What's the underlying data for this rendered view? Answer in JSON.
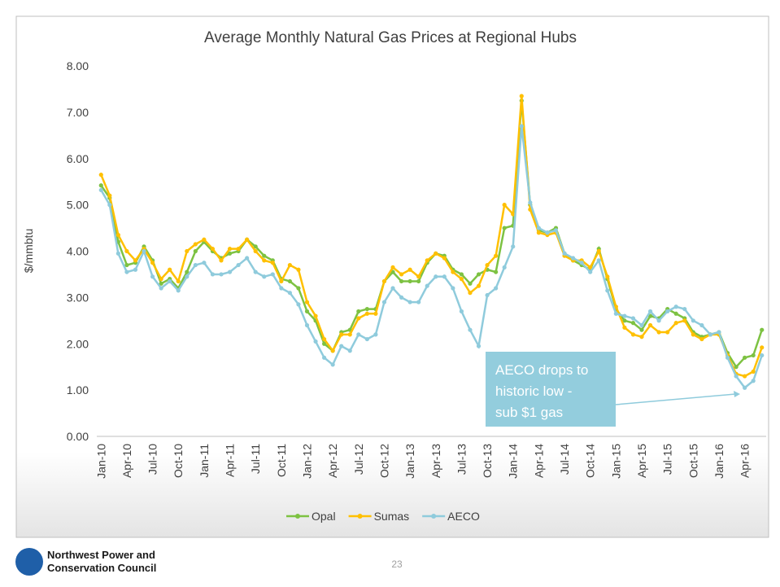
{
  "chart_data": {
    "type": "line",
    "title": "Average Monthly Natural Gas Prices at Regional Hubs",
    "y_label": "$/mmbtu",
    "categories": [
      "Jan-10",
      null,
      null,
      "Apr-10",
      null,
      null,
      "Jul-10",
      null,
      null,
      "Oct-10",
      null,
      null,
      "Jan-11",
      null,
      null,
      "Apr-11",
      null,
      null,
      "Jul-11",
      null,
      null,
      "Oct-11",
      null,
      null,
      "Jan-12",
      null,
      null,
      "Apr-12",
      null,
      null,
      "Jul-12",
      null,
      null,
      "Oct-12",
      null,
      null,
      "Jan-13",
      null,
      null,
      "Apr-13",
      null,
      null,
      "Jul-13",
      null,
      null,
      "Oct-13",
      null,
      null,
      "Jan-14",
      null,
      null,
      "Apr-14",
      null,
      null,
      "Jul-14",
      null,
      null,
      "Oct-14",
      null,
      null,
      "Jan-15",
      null,
      null,
      "Apr-15",
      null,
      null,
      "Jul-15",
      null,
      null,
      "Oct-15",
      null,
      null,
      "Jan-16",
      null,
      null,
      "Apr-16",
      null,
      null
    ],
    "series": [
      {
        "name": "Opal",
        "color": "#7dc242",
        "values": [
          5.42,
          5.15,
          4.2,
          3.7,
          3.75,
          4.1,
          3.8,
          3.3,
          3.4,
          3.2,
          3.55,
          4.0,
          4.2,
          4.0,
          3.85,
          3.95,
          4.0,
          4.25,
          4.1,
          3.9,
          3.8,
          3.4,
          3.35,
          3.2,
          2.7,
          2.5,
          2.0,
          1.85,
          2.25,
          2.3,
          2.7,
          2.75,
          2.75,
          3.35,
          3.55,
          3.35,
          3.35,
          3.35,
          3.75,
          3.95,
          3.9,
          3.6,
          3.5,
          3.3,
          3.5,
          3.6,
          3.55,
          4.5,
          4.55,
          7.25,
          5.0,
          4.45,
          4.4,
          4.5,
          3.95,
          3.8,
          3.7,
          3.6,
          4.05,
          3.4,
          2.75,
          2.5,
          2.45,
          2.3,
          2.6,
          2.55,
          2.75,
          2.65,
          2.55,
          2.25,
          2.15,
          2.2,
          2.25,
          1.8,
          1.5,
          1.7,
          1.75,
          2.3
        ]
      },
      {
        "name": "Sumas",
        "color": "#ffc000",
        "values": [
          5.65,
          5.2,
          4.35,
          4.0,
          3.8,
          4.05,
          3.75,
          3.4,
          3.6,
          3.35,
          4.0,
          4.15,
          4.25,
          4.05,
          3.8,
          4.05,
          4.05,
          4.25,
          4.0,
          3.8,
          3.75,
          3.35,
          3.7,
          3.6,
          2.9,
          2.6,
          2.1,
          1.85,
          2.2,
          2.2,
          2.55,
          2.65,
          2.65,
          3.35,
          3.65,
          3.5,
          3.6,
          3.45,
          3.8,
          3.95,
          3.85,
          3.55,
          3.4,
          3.1,
          3.25,
          3.7,
          3.9,
          5.0,
          4.8,
          7.35,
          4.9,
          4.4,
          4.35,
          4.4,
          3.9,
          3.8,
          3.8,
          3.65,
          4.0,
          3.45,
          2.8,
          2.35,
          2.2,
          2.15,
          2.4,
          2.25,
          2.25,
          2.45,
          2.5,
          2.2,
          2.1,
          2.2,
          2.2,
          1.75,
          1.35,
          1.3,
          1.4,
          1.92
        ]
      },
      {
        "name": "AECO",
        "color": "#8fcbdc",
        "values": [
          5.32,
          5.0,
          3.95,
          3.55,
          3.6,
          4.0,
          3.45,
          3.2,
          3.35,
          3.15,
          3.45,
          3.7,
          3.75,
          3.5,
          3.5,
          3.55,
          3.7,
          3.85,
          3.55,
          3.45,
          3.5,
          3.2,
          3.1,
          2.85,
          2.4,
          2.05,
          1.7,
          1.55,
          1.95,
          1.85,
          2.2,
          2.1,
          2.2,
          2.9,
          3.2,
          3.0,
          2.9,
          2.9,
          3.25,
          3.45,
          3.45,
          3.2,
          2.7,
          2.3,
          1.95,
          3.05,
          3.2,
          3.65,
          4.1,
          6.7,
          5.05,
          4.5,
          4.4,
          4.45,
          3.95,
          3.85,
          3.75,
          3.55,
          3.8,
          3.15,
          2.65,
          2.6,
          2.55,
          2.4,
          2.7,
          2.5,
          2.7,
          2.8,
          2.75,
          2.5,
          2.4,
          2.2,
          2.25,
          1.7,
          1.3,
          1.05,
          1.2,
          1.75
        ]
      }
    ],
    "ylim": [
      0,
      8
    ],
    "yticks": [
      {
        "value": 0,
        "label": "0.00"
      },
      {
        "value": 1,
        "label": "1.00"
      },
      {
        "value": 2,
        "label": "2.00"
      },
      {
        "value": 3,
        "label": "3.00"
      },
      {
        "value": 4,
        "label": "4.00"
      },
      {
        "value": 5,
        "label": "5.00"
      },
      {
        "value": 6,
        "label": "6.00"
      },
      {
        "value": 7,
        "label": "7.00"
      },
      {
        "value": 8,
        "label": "8.00"
      }
    ],
    "legend": "bottom",
    "annotation": [
      "AECO drops to",
      "historic low -",
      "sub $1 gas"
    ]
  },
  "footer": {
    "organization": [
      "Northwest Power and",
      "Conservation Council"
    ],
    "page": "23"
  }
}
